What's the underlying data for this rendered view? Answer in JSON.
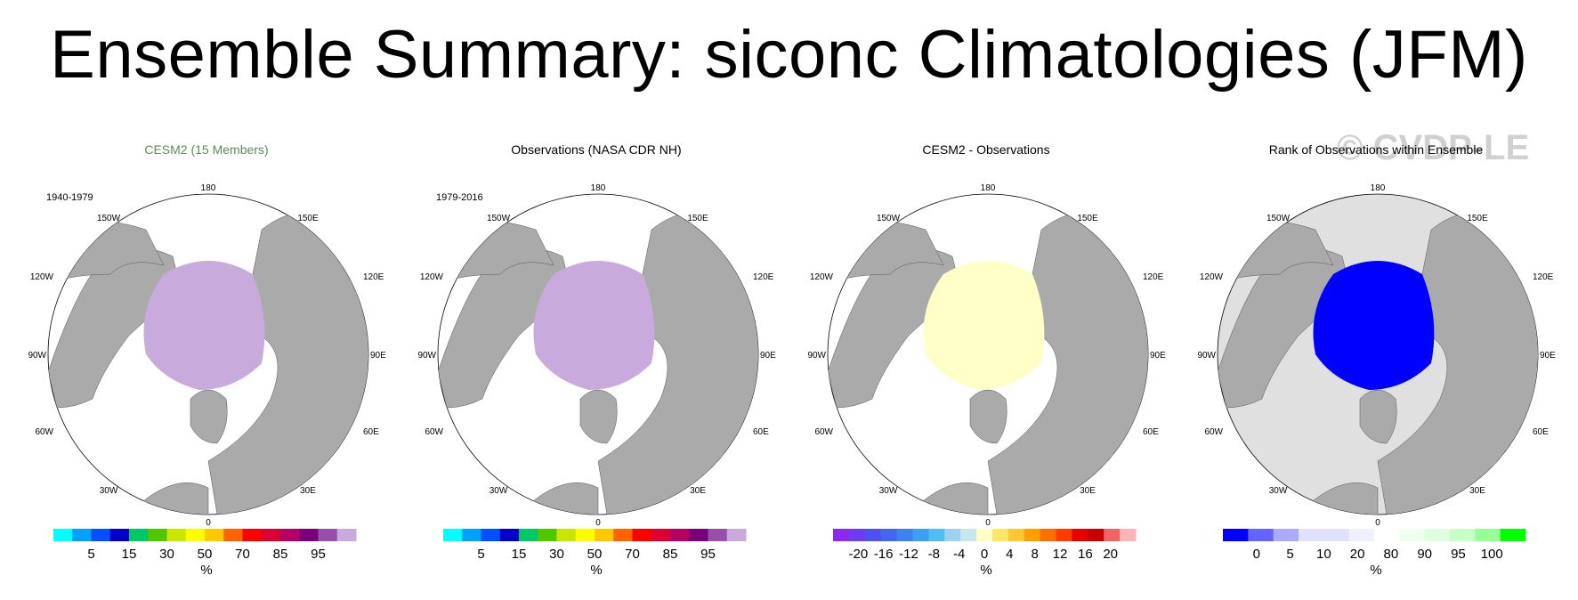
{
  "title": "Ensemble Summary: siconc Climatologies (JFM)",
  "watermark": "© CVDP-LE",
  "lon_labels": {
    "top": "180",
    "bottom": "0",
    "left_upper": "120W",
    "left_mid": "90W",
    "left_lower": "60W",
    "right_upper": "120E",
    "right_mid": "90E",
    "right_lower": "60E",
    "tl": "150W",
    "tr": "150E",
    "bl": "30W",
    "br": "30E"
  },
  "colors": {
    "land": "#aaaaaa",
    "ocean": "#ffffff",
    "rank_background": "#e0e0e0"
  },
  "chart_data": [
    {
      "type": "heatmap",
      "title": "CESM2 (15 Members)",
      "period": "1940-1979",
      "colorbar": {
        "colors": [
          "#00ffff",
          "#00a0ff",
          "#0050ff",
          "#0000c8",
          "#00c864",
          "#50c800",
          "#c8e600",
          "#ffff00",
          "#ffc800",
          "#ff6400",
          "#ff0000",
          "#dc0032",
          "#b40064",
          "#780078",
          "#9650aa",
          "#c8aadc"
        ],
        "tick_labels": [
          "5",
          "15",
          "30",
          "50",
          "70",
          "85",
          "95"
        ],
        "unit": "%"
      }
    },
    {
      "type": "heatmap",
      "title": "Observations (NASA CDR NH)",
      "period": "1979-2016",
      "colorbar": {
        "colors": [
          "#00ffff",
          "#00a0ff",
          "#0050ff",
          "#0000c8",
          "#00c864",
          "#50c800",
          "#c8e600",
          "#ffff00",
          "#ffc800",
          "#ff6400",
          "#ff0000",
          "#dc0032",
          "#b40064",
          "#780078",
          "#9650aa",
          "#c8aadc"
        ],
        "tick_labels": [
          "5",
          "15",
          "30",
          "50",
          "70",
          "85",
          "95"
        ],
        "unit": "%"
      }
    },
    {
      "type": "heatmap",
      "title": "CESM2 - Observations",
      "period": "",
      "colorbar": {
        "colors": [
          "#8c28f0",
          "#6e3cf0",
          "#5050f0",
          "#4664f0",
          "#3c82f0",
          "#3ca0f0",
          "#50bef0",
          "#a0d2f0",
          "#c8e6f0",
          "#ffffc8",
          "#ffe664",
          "#ffc832",
          "#ffa000",
          "#ff6e00",
          "#ff3c00",
          "#e60000",
          "#c80000",
          "#f06464",
          "#ffb4b4"
        ],
        "tick_labels": [
          "-20",
          "-16",
          "-12",
          "-8",
          "-4",
          "0",
          "4",
          "8",
          "12",
          "16",
          "20"
        ],
        "unit": "%"
      }
    },
    {
      "type": "heatmap",
      "title": "Rank of Observations within Ensemble",
      "period": "",
      "colorbar": {
        "colors": [
          "#0000ff",
          "#6464ff",
          "#aaaaff",
          "#e0e0ff",
          "#e0e0ff",
          "#f0f0ff",
          "#ffffff",
          "#f0fff0",
          "#e0ffe0",
          "#c8ffc8",
          "#96ff96",
          "#00ff00"
        ],
        "tick_labels": [
          "0",
          "5",
          "10",
          "20",
          "80",
          "90",
          "95",
          "100"
        ],
        "unit": "%"
      }
    }
  ]
}
